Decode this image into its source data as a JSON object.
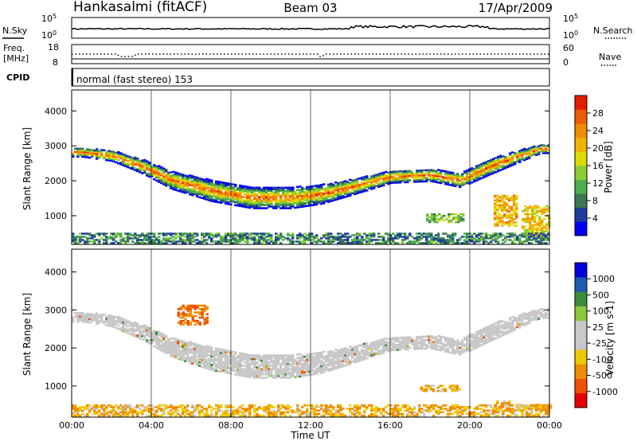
{
  "header": {
    "station": "Hankasalmi (fitACF)",
    "beam": "Beam 03",
    "date": "17/Apr/2009"
  },
  "top_panels": {
    "noise": {
      "left_label": "N.Sky",
      "right_label": "N.Search",
      "scale_top": "10^5",
      "scale_bottom": "10^0"
    },
    "freq": {
      "left_label_1": "Freq.",
      "left_label_2": "[MHz]",
      "left_top": "18",
      "left_bottom": "8",
      "right_top": "60",
      "right_bottom": "0",
      "right_label": "Nave"
    },
    "cpid": {
      "label": "CPID",
      "mode": "normal (fast stereo) 153"
    }
  },
  "colors": {
    "power": [
      "#0000ff",
      "#1e3ca0",
      "#3c7850",
      "#4caf50",
      "#8ccd32",
      "#dcdc00",
      "#f0b400",
      "#f08c00",
      "#f05a00",
      "#e61e00"
    ],
    "velocity": [
      "#e60000",
      "#f05000",
      "#f08c00",
      "#f0c800",
      "#c8c8c8",
      "#c8c8c8",
      "#8cc83c",
      "#3c8c3c",
      "#1e5ab4",
      "#0000dc"
    ],
    "ground": "#c8c8c8"
  },
  "chart_data": [
    {
      "type": "heatmap",
      "title": "Power",
      "ylabel": "Slant Range [km]",
      "ylim": [
        180,
        4600
      ],
      "yticks": [
        "1000",
        "2000",
        "3000",
        "4000"
      ],
      "xlim": [
        0,
        24
      ],
      "xticks": [
        "00:00",
        "04:00",
        "08:00",
        "12:00",
        "16:00",
        "20:00",
        "00:00"
      ],
      "colorbar": {
        "label": "Power [dB]",
        "ticks": [
          "4",
          "8",
          "12",
          "16",
          "20",
          "24",
          "28"
        ],
        "range": [
          0,
          30
        ]
      },
      "main_band": [
        {
          "x": 0.5,
          "center": 2800,
          "width": 250
        },
        {
          "x": 2,
          "center": 2700,
          "width": 300
        },
        {
          "x": 3.5,
          "center": 2400,
          "width": 400
        },
        {
          "x": 5,
          "center": 2000,
          "width": 500
        },
        {
          "x": 7,
          "center": 1700,
          "width": 600
        },
        {
          "x": 9,
          "center": 1500,
          "width": 600
        },
        {
          "x": 11,
          "center": 1500,
          "width": 600
        },
        {
          "x": 12.5,
          "center": 1600,
          "width": 550
        },
        {
          "x": 14,
          "center": 1800,
          "width": 450
        },
        {
          "x": 16,
          "center": 2100,
          "width": 350
        },
        {
          "x": 18,
          "center": 2150,
          "width": 350
        },
        {
          "x": 19.5,
          "center": 2000,
          "width": 400
        },
        {
          "x": 21,
          "center": 2400,
          "width": 450
        },
        {
          "x": 23.5,
          "center": 2900,
          "width": 250
        }
      ],
      "patches": [
        {
          "x": [
            17.8,
            19.7
          ],
          "y": [
            800,
            1050
          ],
          "value": 12
        },
        {
          "x": [
            21.2,
            22.4
          ],
          "y": [
            700,
            1600
          ],
          "value": 20
        },
        {
          "x": [
            22.6,
            24
          ],
          "y": [
            400,
            1300
          ],
          "value": 18
        },
        {
          "x": [
            0,
            24
          ],
          "y": [
            200,
            500
          ],
          "value": 8
        }
      ]
    },
    {
      "type": "heatmap",
      "title": "Velocity",
      "ylabel": "Slant Range [km]",
      "xlabel": "Time UT",
      "ylim": [
        180,
        4600
      ],
      "yticks": [
        "1000",
        "2000",
        "3000",
        "4000"
      ],
      "xlim": [
        0,
        24
      ],
      "xticks": [
        "00:00",
        "04:00",
        "08:00",
        "12:00",
        "16:00",
        "20:00",
        "00:00"
      ],
      "colorbar": {
        "label": "Velocity [m s-1]",
        "ticks": [
          "-1000",
          "-500",
          "-100",
          "-25",
          "25",
          "100",
          "500",
          "1000"
        ],
        "range": [
          -1200,
          1200
        ]
      },
      "patches": [
        {
          "x": [
            5.3,
            6.8
          ],
          "y": [
            2600,
            3100
          ],
          "value": -500
        },
        {
          "x": [
            17.5,
            19.5
          ],
          "y": [
            850,
            1000
          ],
          "value": -100
        },
        {
          "x": [
            21.2,
            22
          ],
          "y": [
            350,
            600
          ],
          "value": -100
        },
        {
          "x": [
            22.3,
            24
          ],
          "y": [
            350,
            500
          ],
          "value": -100
        },
        {
          "x": [
            0,
            24
          ],
          "y": [
            200,
            500
          ],
          "value": -100
        }
      ]
    }
  ]
}
